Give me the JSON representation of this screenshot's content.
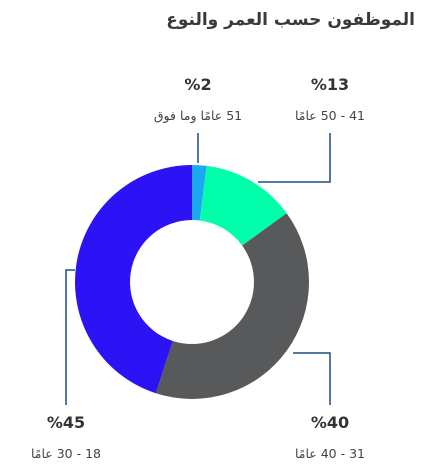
{
  "chart_data": {
    "type": "donut",
    "title": "الموظفون حسب العمر والنوع",
    "slices": [
      {
        "category": "51 عامًا وما فوق",
        "value": 2,
        "value_label": "%2",
        "color": "#1aa8f0"
      },
      {
        "category": "41 - 50 عامًا",
        "value": 13,
        "value_label": "%13",
        "color": "#00ffaa"
      },
      {
        "category": "31 - 40 عامًا",
        "value": 40,
        "value_label": "%40",
        "color": "#58595b"
      },
      {
        "category": "18 - 30 عامًا",
        "value": 45,
        "value_label": "%45",
        "color": "#2b13f5"
      }
    ],
    "legend": "none"
  }
}
